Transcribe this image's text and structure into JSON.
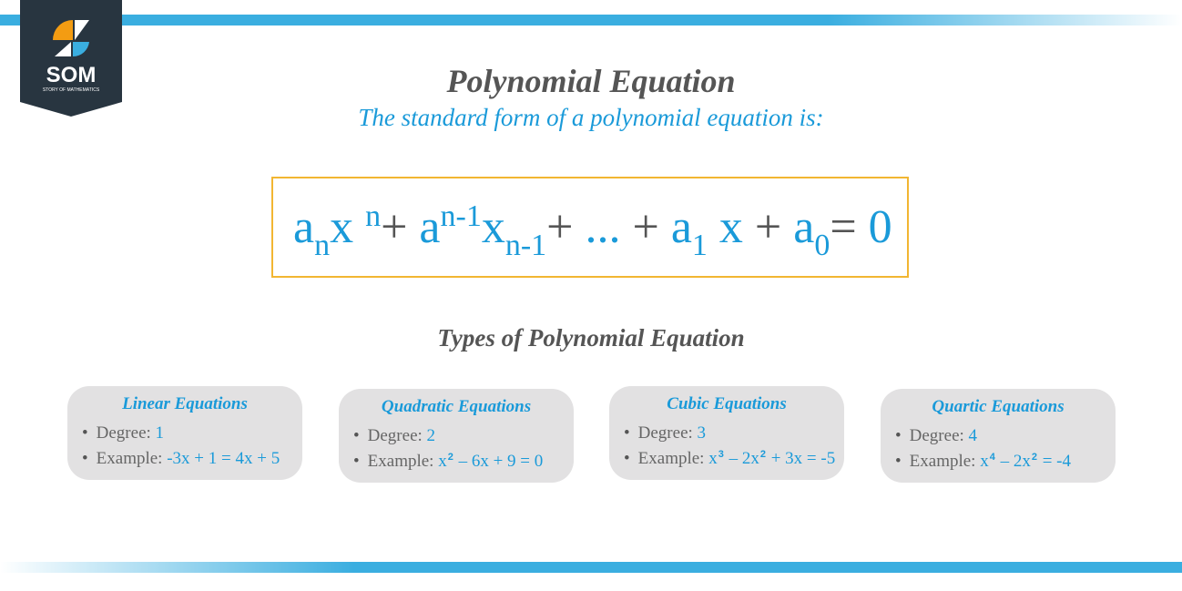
{
  "logo": {
    "text": "SOM",
    "tagline": "STORY OF MATHEMATICS"
  },
  "title": "Polynomial Equation",
  "subtitle": "The standard form of a polynomial equation is:",
  "equation": [
    {
      "t": "a"
    },
    {
      "sub": "n"
    },
    {
      "t": "x "
    },
    {
      "sup": "n"
    },
    {
      "op": "+ "
    },
    {
      "t": "a"
    },
    {
      "sup": "n-1"
    },
    {
      "t": "x"
    },
    {
      "sub": "n-1"
    },
    {
      "op": "+ "
    },
    {
      "t": "... "
    },
    {
      "op": "+ "
    },
    {
      "t": "a"
    },
    {
      "sub": "1"
    },
    {
      "t": " x "
    },
    {
      "op": "+ "
    },
    {
      "t": "a"
    },
    {
      "sub": "0"
    },
    {
      "op": "= "
    },
    {
      "t": "0"
    }
  ],
  "types_heading": "Types of Polynomial Equation",
  "degree_label": "Degree:",
  "example_label": "Example:",
  "cards": [
    {
      "title": "Linear Equations",
      "degree": "1",
      "example": [
        {
          "t": "-3x + 1 = 4x + 5"
        }
      ]
    },
    {
      "title": "Quadratic Equations",
      "degree": "2",
      "example": [
        {
          "t": "x"
        },
        {
          "sup": "2"
        },
        {
          "t": " – 6x + 9 = 0"
        }
      ]
    },
    {
      "title": "Cubic Equations",
      "degree": "3",
      "example": [
        {
          "t": "x"
        },
        {
          "sup": "3"
        },
        {
          "t": " – 2x"
        },
        {
          "sup": "2"
        },
        {
          "t": " + 3x = -5"
        }
      ]
    },
    {
      "title": "Quartic Equations",
      "degree": "4",
      "example": [
        {
          "t": "x"
        },
        {
          "sup": "4"
        },
        {
          "t": " – 2x"
        },
        {
          "sup": "2"
        },
        {
          "t": " = -4"
        }
      ]
    }
  ],
  "colors": {
    "accent": "#1a9ad9",
    "bar": "#3aaee0",
    "box_border": "#f2b632",
    "card_bg": "#e2e1e2",
    "logo_bg": "#283540"
  }
}
